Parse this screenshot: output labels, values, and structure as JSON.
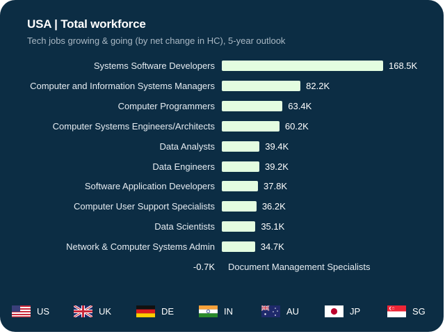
{
  "header": {
    "title": "USA | Total workforce",
    "subtitle": "Tech jobs growing & going (by net change in HC), 5-year outlook"
  },
  "colors": {
    "background": "#0c2d44",
    "bar": "#e3fde0",
    "title": "#ffffff",
    "subtitle": "#a9b8c4"
  },
  "chart_data": {
    "type": "bar",
    "orientation": "horizontal",
    "title": "USA | Total workforce",
    "subtitle": "Tech jobs growing & going (by net change in HC), 5-year outlook",
    "xlabel": "",
    "ylabel": "",
    "unit": "K",
    "grid": false,
    "categories": [
      "Systems Software Developers",
      "Computer and Information Systems Managers",
      "Computer Programmers",
      "Computer Systems Engineers/Architects",
      "Data Analysts",
      "Data Engineers",
      "Software Application Developers",
      "Computer User Support Specialists",
      "Data Scientists",
      "Network & Computer Systems Admin",
      "Document Management Specialists"
    ],
    "values": [
      168.5,
      82.2,
      63.4,
      60.2,
      39.4,
      39.2,
      37.8,
      36.2,
      35.1,
      34.7,
      -0.7
    ],
    "value_labels": [
      "168.5K",
      "82.2K",
      "63.4K",
      "60.2K",
      "39.4K",
      "39.2K",
      "37.8K",
      "36.2K",
      "35.1K",
      "34.7K",
      "-0.7K"
    ]
  },
  "legend": {
    "countries": [
      {
        "code": "US",
        "icon": "us-flag-icon"
      },
      {
        "code": "UK",
        "icon": "uk-flag-icon"
      },
      {
        "code": "DE",
        "icon": "de-flag-icon"
      },
      {
        "code": "IN",
        "icon": "in-flag-icon"
      },
      {
        "code": "AU",
        "icon": "au-flag-icon"
      },
      {
        "code": "JP",
        "icon": "jp-flag-icon"
      },
      {
        "code": "SG",
        "icon": "sg-flag-icon"
      }
    ]
  }
}
